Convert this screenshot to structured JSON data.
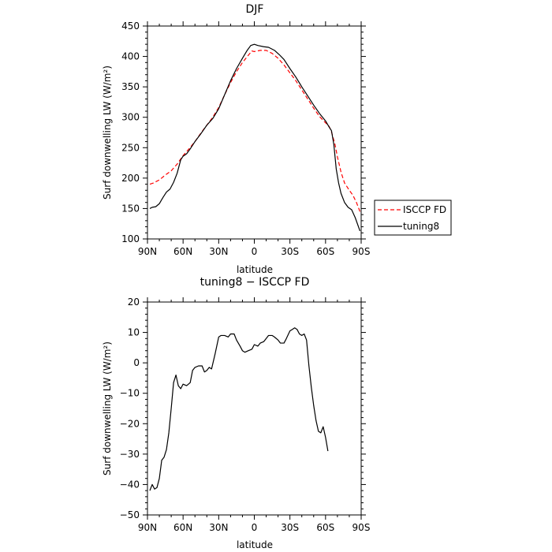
{
  "chart_data": [
    {
      "type": "line",
      "title": "DJF",
      "xlabel": "latitude",
      "ylabel": "Surf downwelling LW (W/m²)",
      "xlim": [
        -90,
        90
      ],
      "ylim": [
        100,
        450
      ],
      "x_ticks": [
        -90,
        -60,
        -30,
        0,
        30,
        60,
        90
      ],
      "x_tick_labels": [
        "90N",
        "60N",
        "30N",
        "0",
        "30S",
        "60S",
        "90S"
      ],
      "y_ticks": [
        100,
        150,
        200,
        250,
        300,
        350,
        400,
        450
      ],
      "y_tick_labels": [
        "100",
        "150",
        "200",
        "250",
        "300",
        "350",
        "400",
        "450"
      ],
      "legend_position": "right",
      "series": [
        {
          "name": "ISCCP FD",
          "color": "#ff0000",
          "dash": "dashed",
          "points": [
            [
              -88,
              190
            ],
            [
              -85,
              192
            ],
            [
              -80,
              197
            ],
            [
              -75,
              205
            ],
            [
              -70,
              212
            ],
            [
              -65,
              223
            ],
            [
              -60,
              237
            ],
            [
              -55,
              248
            ],
            [
              -50,
              260
            ],
            [
              -45,
              274
            ],
            [
              -40,
              287
            ],
            [
              -35,
              300
            ],
            [
              -30,
              316
            ],
            [
              -25,
              337
            ],
            [
              -20,
              357
            ],
            [
              -15,
              375
            ],
            [
              -10,
              390
            ],
            [
              -5,
              402
            ],
            [
              -2,
              409
            ],
            [
              0,
              408
            ],
            [
              5,
              410
            ],
            [
              10,
              410
            ],
            [
              15,
              405
            ],
            [
              20,
              397
            ],
            [
              25,
              386
            ],
            [
              30,
              373
            ],
            [
              35,
              360
            ],
            [
              40,
              345
            ],
            [
              45,
              330
            ],
            [
              50,
              315
            ],
            [
              55,
              301
            ],
            [
              60,
              291
            ],
            [
              63,
              285
            ],
            [
              65,
              276
            ],
            [
              68,
              255
            ],
            [
              70,
              235
            ],
            [
              73,
              210
            ],
            [
              76,
              192
            ],
            [
              80,
              180
            ],
            [
              83,
              172
            ],
            [
              86,
              160
            ],
            [
              89,
              145
            ]
          ]
        },
        {
          "name": "tuning8",
          "color": "#000000",
          "dash": "solid",
          "points": [
            [
              -88,
              150
            ],
            [
              -86,
              152
            ],
            [
              -83,
              153
            ],
            [
              -80,
              158
            ],
            [
              -77,
              168
            ],
            [
              -74,
              177
            ],
            [
              -71,
              182
            ],
            [
              -68,
              193
            ],
            [
              -65,
              208
            ],
            [
              -62,
              230
            ],
            [
              -60,
              236
            ],
            [
              -57,
              240
            ],
            [
              -54,
              248
            ],
            [
              -50,
              260
            ],
            [
              -45,
              273
            ],
            [
              -40,
              287
            ],
            [
              -35,
              298
            ],
            [
              -30,
              314
            ],
            [
              -25,
              337
            ],
            [
              -20,
              360
            ],
            [
              -15,
              380
            ],
            [
              -10,
              397
            ],
            [
              -6,
              410
            ],
            [
              -3,
              418
            ],
            [
              0,
              420
            ],
            [
              3,
              418
            ],
            [
              8,
              416
            ],
            [
              12,
              415
            ],
            [
              17,
              410
            ],
            [
              21,
              403
            ],
            [
              25,
              395
            ],
            [
              30,
              380
            ],
            [
              35,
              366
            ],
            [
              40,
              350
            ],
            [
              45,
              335
            ],
            [
              50,
              320
            ],
            [
              55,
              306
            ],
            [
              60,
              294
            ],
            [
              63,
              284
            ],
            [
              65,
              278
            ],
            [
              67,
              255
            ],
            [
              69,
              215
            ],
            [
              71,
              192
            ],
            [
              73,
              175
            ],
            [
              76,
              160
            ],
            [
              79,
              152
            ],
            [
              82,
              148
            ],
            [
              85,
              135
            ],
            [
              89,
              113
            ]
          ]
        }
      ]
    },
    {
      "type": "line",
      "title": "tuning8 − ISCCP FD",
      "xlabel": "latitude",
      "ylabel": "Surf downwelling LW (W/m²)",
      "xlim": [
        -90,
        90
      ],
      "ylim": [
        -50,
        20
      ],
      "x_ticks": [
        -90,
        -60,
        -30,
        0,
        30,
        60,
        90
      ],
      "x_tick_labels": [
        "90N",
        "60N",
        "30N",
        "0",
        "30S",
        "60S",
        "90S"
      ],
      "y_ticks": [
        -50,
        -40,
        -30,
        -20,
        -10,
        0,
        10,
        20
      ],
      "y_tick_labels": [
        "−50",
        "−40",
        "−30",
        "−20",
        "−10",
        "0",
        "10",
        "20"
      ],
      "series": [
        {
          "color": "#000000",
          "dash": "solid",
          "points": [
            [
              -88,
              -42
            ],
            [
              -86,
              -40
            ],
            [
              -84,
              -41.5
            ],
            [
              -82,
              -41
            ],
            [
              -80,
              -38
            ],
            [
              -78,
              -32
            ],
            [
              -76,
              -31
            ],
            [
              -74,
              -28.5
            ],
            [
              -72,
              -23
            ],
            [
              -70,
              -15
            ],
            [
              -68,
              -6.5
            ],
            [
              -66,
              -4
            ],
            [
              -64,
              -7.5
            ],
            [
              -62,
              -8.5
            ],
            [
              -60,
              -7
            ],
            [
              -57,
              -7.5
            ],
            [
              -54,
              -6.5
            ],
            [
              -52,
              -2.5
            ],
            [
              -50,
              -1.5
            ],
            [
              -47,
              -1
            ],
            [
              -44,
              -1
            ],
            [
              -42,
              -3
            ],
            [
              -40,
              -2.5
            ],
            [
              -38,
              -1.5
            ],
            [
              -36,
              -2
            ],
            [
              -33,
              3
            ],
            [
              -30,
              8.5
            ],
            [
              -28,
              9
            ],
            [
              -25,
              9
            ],
            [
              -22,
              8.5
            ],
            [
              -20,
              9.5
            ],
            [
              -17,
              9.5
            ],
            [
              -15,
              7.5
            ],
            [
              -12,
              5.5
            ],
            [
              -10,
              4
            ],
            [
              -8,
              3.5
            ],
            [
              -5,
              4
            ],
            [
              -2,
              4.5
            ],
            [
              0,
              6
            ],
            [
              3,
              5.5
            ],
            [
              5,
              6.5
            ],
            [
              8,
              7
            ],
            [
              10,
              8
            ],
            [
              12,
              9
            ],
            [
              15,
              9
            ],
            [
              17,
              8.5
            ],
            [
              20,
              7.5
            ],
            [
              22,
              6.5
            ],
            [
              25,
              6.5
            ],
            [
              27,
              8
            ],
            [
              30,
              10.5
            ],
            [
              32,
              11
            ],
            [
              34,
              11.5
            ],
            [
              36,
              11
            ],
            [
              38,
              9.5
            ],
            [
              40,
              9
            ],
            [
              42,
              9.5
            ],
            [
              44,
              7.5
            ],
            [
              46,
              -1
            ],
            [
              48,
              -8
            ],
            [
              50,
              -14
            ],
            [
              52,
              -19
            ],
            [
              54,
              -22.5
            ],
            [
              56,
              -23
            ],
            [
              58,
              -21
            ],
            [
              60,
              -24.5
            ],
            [
              62,
              -29
            ]
          ]
        }
      ]
    }
  ]
}
